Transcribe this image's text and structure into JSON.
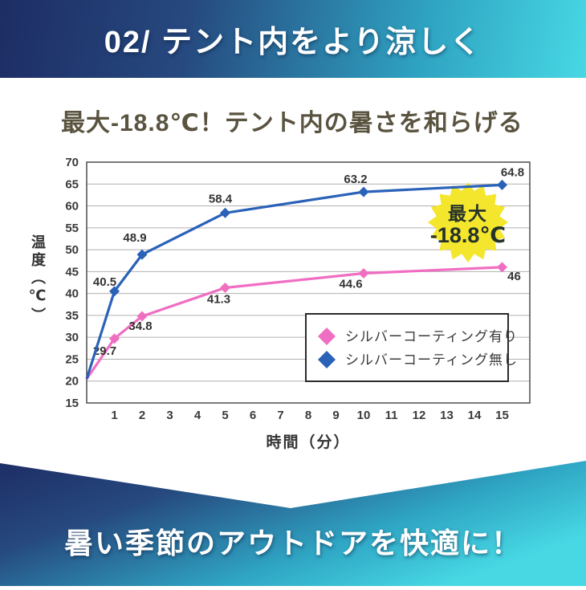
{
  "top_banner": {
    "text": "02/ テント内をより涼しく",
    "gradient_start": "#1d2d64",
    "gradient_end": "#47d8e4"
  },
  "subtitle": "最大-18.8℃！テント内の暑さを和らげる",
  "chart_data": {
    "type": "line",
    "xlabel": "時間（分）",
    "ylabel": "温度（℃）",
    "x_ticks": [
      1,
      2,
      3,
      4,
      5,
      6,
      7,
      8,
      9,
      10,
      11,
      12,
      13,
      14,
      15
    ],
    "y_ticks": [
      15,
      20,
      25,
      30,
      35,
      40,
      45,
      50,
      55,
      60,
      65,
      70
    ],
    "ylim": [
      15,
      70
    ],
    "xlim": [
      0,
      16
    ],
    "grid": "horizontal",
    "legend_position": "bottom-right",
    "series": [
      {
        "name": "シルバーコーティング有り",
        "color": "#f06ec2",
        "marker": "diamond",
        "x": [
          0,
          1,
          2,
          5,
          10,
          15
        ],
        "values": [
          20.5,
          29.7,
          34.8,
          41.3,
          44.6,
          46
        ],
        "labels": [
          null,
          "29.7",
          "34.8",
          "41.3",
          "44.6",
          "46"
        ]
      },
      {
        "name": "シルバーコーティング無し",
        "color": "#2a62b8",
        "marker": "diamond",
        "x": [
          0,
          1,
          2,
          5,
          10,
          15
        ],
        "values": [
          20.5,
          40.5,
          48.9,
          58.4,
          63.2,
          64.8
        ],
        "labels": [
          null,
          "40.5",
          "48.9",
          "58.4",
          "63.2",
          "64.8"
        ]
      }
    ]
  },
  "badge": {
    "line1": "最大",
    "line2": "-18.8℃",
    "bg": "#f4e52d",
    "text_color": "#243229"
  },
  "bottom_banner": {
    "text": "暑い季節のアウトドアを快適に！"
  }
}
